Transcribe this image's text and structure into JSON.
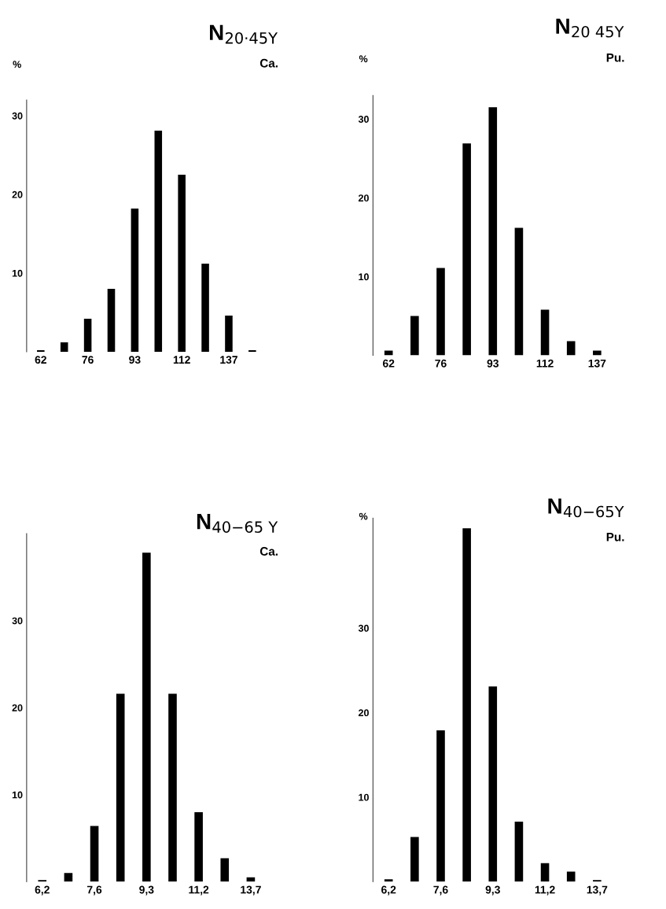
{
  "chart_data": [
    {
      "type": "bar",
      "title": "N$_{20·45Y}$",
      "subtitle": "Ca.",
      "ylabel": "%",
      "categories": [
        "62",
        null,
        "76",
        null,
        "93",
        null,
        "112",
        null,
        "137",
        null
      ],
      "values": [
        0.2,
        1.2,
        4.2,
        8,
        18.2,
        28.1,
        22.5,
        11.2,
        4.6,
        0.2
      ],
      "color": "#000000",
      "ylim": [
        0,
        32
      ],
      "yticks": [
        10,
        20,
        30
      ],
      "grid": false
    },
    {
      "type": "bar",
      "title": "N$_{20 45Y}$",
      "subtitle": "Pu.",
      "ylabel": "%",
      "categories": [
        "62",
        null,
        "76",
        null,
        "93",
        null,
        "112",
        null,
        "137"
      ],
      "values": [
        0.6,
        5.0,
        11.1,
        26.9,
        31.5,
        16.2,
        5.8,
        1.8,
        0.6
      ],
      "color": "#000000",
      "ylim": [
        0,
        33
      ],
      "yticks": [
        10,
        20,
        30
      ],
      "grid": false
    },
    {
      "type": "bar",
      "title": "N$_{40−65 Y}$",
      "subtitle": "Ca.",
      "categories": [
        "6,2",
        null,
        "7,6",
        null,
        "9,3",
        null,
        "11,2",
        null,
        "13,7"
      ],
      "values": [
        0.2,
        1.0,
        6.4,
        21.6,
        37.8,
        21.6,
        8.0,
        2.7,
        0.5
      ],
      "color": "#000000",
      "ylim": [
        0,
        40
      ],
      "yticks": [
        10,
        20,
        30
      ],
      "grid": false
    },
    {
      "type": "bar",
      "title": "N$_{40−65Y}$",
      "subtitle": "Pu.",
      "ylabel": "%",
      "categories": [
        "6,2",
        null,
        "7,6",
        null,
        "9,3",
        null,
        "11,2",
        null,
        "13,7"
      ],
      "values": [
        0.3,
        5.3,
        17.9,
        41.8,
        23.1,
        7.1,
        2.2,
        1.2,
        0.2
      ],
      "color": "#000000",
      "ylim": [
        0,
        43
      ],
      "yticks": [
        10,
        20,
        30
      ],
      "grid": false
    }
  ]
}
